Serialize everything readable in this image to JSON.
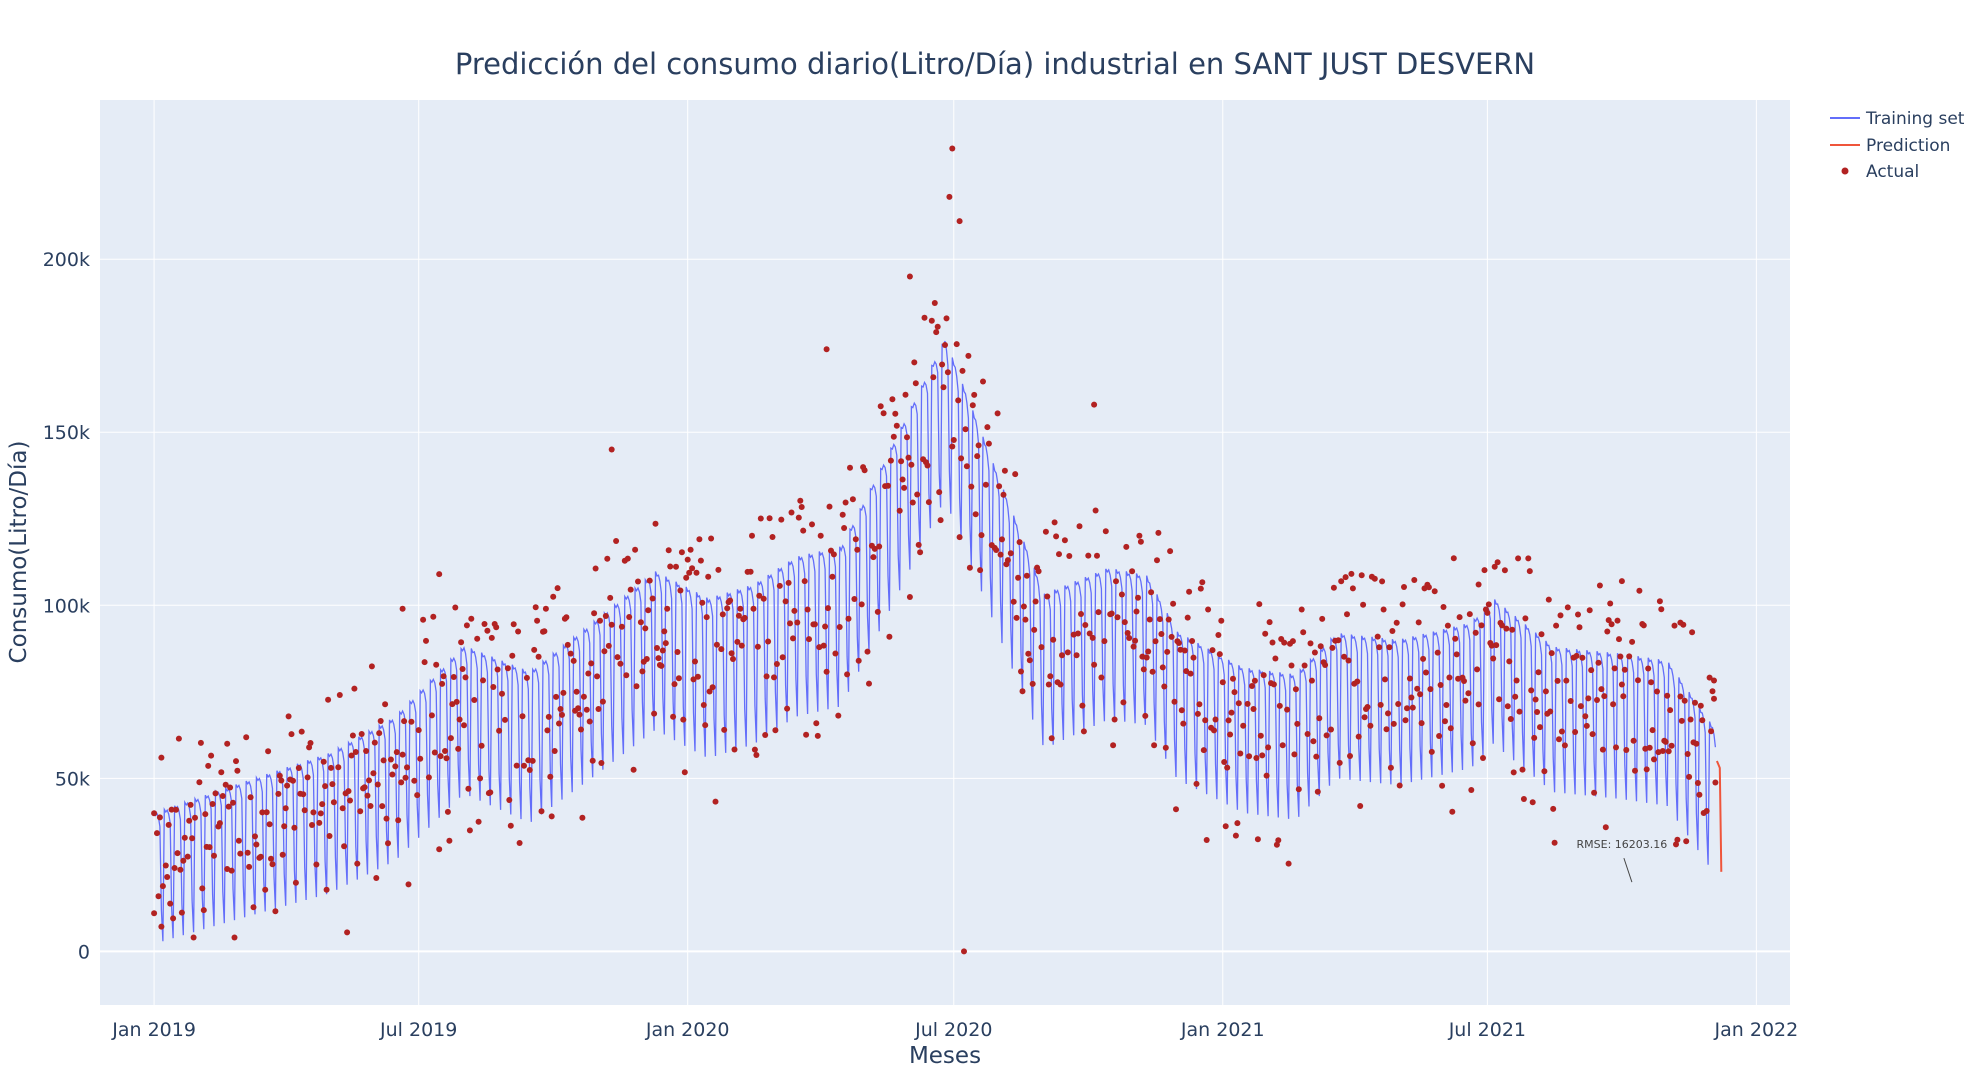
{
  "chart_data": {
    "type": "line",
    "title": "Predicción del consumo diario(Litro/Día) industrial en SANT JUST DESVERN",
    "xlabel": "Meses",
    "ylabel": "Consumo(Litro/Día)",
    "x_ticks": [
      {
        "date": "2019-01-01",
        "label": "Jan 2019"
      },
      {
        "date": "2019-07-01",
        "label": "Jul 2019"
      },
      {
        "date": "2020-01-01",
        "label": "Jan 2020"
      },
      {
        "date": "2020-07-01",
        "label": "Jul 2020"
      },
      {
        "date": "2021-01-01",
        "label": "Jan 2021"
      },
      {
        "date": "2021-07-01",
        "label": "Jul 2021"
      },
      {
        "date": "2022-01-01",
        "label": "Jan 2022"
      }
    ],
    "y_ticks": [
      {
        "value": 0,
        "label": "0"
      },
      {
        "value": 50000,
        "label": "50k"
      },
      {
        "value": 100000,
        "label": "100k"
      },
      {
        "value": 150000,
        "label": "150k"
      },
      {
        "value": 200000,
        "label": "200k"
      }
    ],
    "xlim": [
      "2018-11-25",
      "2022-01-24"
    ],
    "ylim": [
      -15500,
      246000
    ],
    "grid": true,
    "legend_position": "top-right",
    "series": [
      {
        "name": "Training set",
        "kind": "line",
        "color": "#636efa",
        "trend": [
          [
            "2019-01-01",
            22000
          ],
          [
            "2019-03-01",
            30000
          ],
          [
            "2019-05-01",
            38000
          ],
          [
            "2019-06-15",
            48000
          ],
          [
            "2019-08-01",
            68000
          ],
          [
            "2019-09-15",
            60000
          ],
          [
            "2019-11-01",
            75000
          ],
          [
            "2019-12-10",
            88000
          ],
          [
            "2020-01-15",
            80000
          ],
          [
            "2020-02-15",
            84000
          ],
          [
            "2020-03-15",
            92000
          ],
          [
            "2020-04-15",
            95000
          ],
          [
            "2020-05-15",
            120000
          ],
          [
            "2020-06-25",
            155000
          ],
          [
            "2020-08-01",
            115000
          ],
          [
            "2020-09-01",
            82000
          ],
          [
            "2020-10-15",
            90000
          ],
          [
            "2020-11-10",
            88000
          ],
          [
            "2020-12-01",
            72000
          ],
          [
            "2021-01-15",
            62000
          ],
          [
            "2021-02-20",
            60000
          ],
          [
            "2021-03-20",
            72000
          ],
          [
            "2021-05-01",
            70000
          ],
          [
            "2021-06-20",
            75000
          ],
          [
            "2021-07-05",
            82000
          ],
          [
            "2021-08-15",
            68000
          ],
          [
            "2021-10-01",
            66000
          ],
          [
            "2021-11-01",
            64000
          ],
          [
            "2021-12-04",
            44000
          ]
        ],
        "weekly_amplitude": [
          [
            "2019-01-01",
            18000
          ],
          [
            "2019-07-01",
            20000
          ],
          [
            "2020-01-01",
            22000
          ],
          [
            "2020-07-01",
            22000
          ],
          [
            "2021-01-01",
            20000
          ],
          [
            "2021-07-01",
            20000
          ],
          [
            "2021-12-04",
            20000
          ]
        ]
      },
      {
        "name": "Prediction",
        "kind": "line",
        "color": "#ef553b",
        "points": [
          [
            "2021-12-05",
            55000
          ],
          [
            "2021-12-06",
            54000
          ],
          [
            "2021-12-07",
            53000
          ],
          [
            "2021-12-08",
            23000
          ]
        ]
      },
      {
        "name": "Actual",
        "kind": "markers",
        "color": "#b22222",
        "notable_points": [
          [
            "2019-01-01",
            11000
          ],
          [
            "2019-01-06",
            56000
          ],
          [
            "2019-02-20",
            60000
          ],
          [
            "2019-06-20",
            99000
          ],
          [
            "2019-07-15",
            109000
          ],
          [
            "2019-11-10",
            145000
          ],
          [
            "2020-04-05",
            174000
          ],
          [
            "2020-06-01",
            195000
          ],
          [
            "2020-06-30",
            232000
          ],
          [
            "2020-06-28",
            218000
          ],
          [
            "2020-07-05",
            211000
          ],
          [
            "2020-07-08",
            0
          ],
          [
            "2020-10-05",
            158000
          ],
          [
            "2021-06-25",
            106000
          ],
          [
            "2021-10-01",
            107000
          ],
          [
            "2021-11-10",
            95000
          ],
          [
            "2021-12-03",
            73000
          ]
        ]
      }
    ],
    "annotation": {
      "text": "RMSE: 16203.16",
      "date": "2021-10-01",
      "value": 20000
    }
  }
}
